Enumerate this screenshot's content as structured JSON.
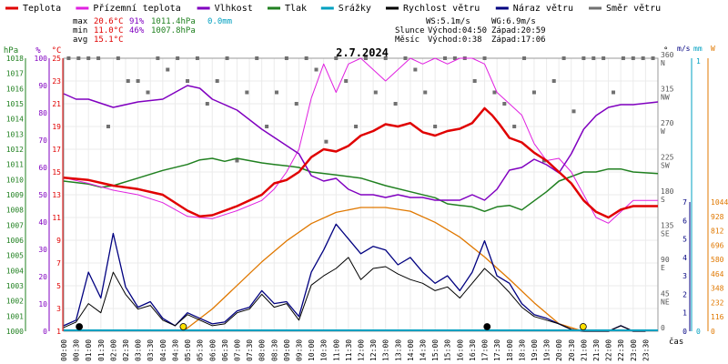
{
  "chart_data": {
    "type": "line",
    "title": "2.7.2024",
    "legend": [
      {
        "label": "Teplota",
        "color": "#e00000"
      },
      {
        "label": "Přízemní teplota",
        "color": "#e020e0"
      },
      {
        "label": "Vlhkost",
        "color": "#8000c0"
      },
      {
        "label": "Tlak",
        "color": "#208020"
      },
      {
        "label": "Srážky",
        "color": "#00a0c0"
      },
      {
        "label": "Rychlost větru",
        "color": "#000000"
      },
      {
        "label": "Náraz větru",
        "color": "#000080"
      },
      {
        "label": "Směr větru",
        "color": "#707070"
      }
    ],
    "stats": {
      "max_label": "max",
      "min_label": "min",
      "avg_label": "avg",
      "max_temp": "20.6°C",
      "max_hum": "91%",
      "max_press": "1011.4hPa",
      "max_rain": "0.0mm",
      "min_temp": "11.0°C",
      "min_hum": "46%",
      "min_press": "1007.8hPa",
      "avg_temp": "15.1°C",
      "ws": "WS:5.1m/s",
      "wg": "WG:6.9m/s",
      "sun_label": "Slunce",
      "moon_label": "Měsíc",
      "sunrise": "Východ:04:50",
      "sunset": "Západ:20:59",
      "moonrise": "Východ:0:38",
      "moonset": "Západ:17:06"
    },
    "axis_units": {
      "pressure": "hPa",
      "percent": "%",
      "celsius": "°C",
      "degrees": "°",
      "speed": "m/s",
      "rain": "mm",
      "radiation": "W",
      "time": "čas"
    },
    "pressure_ticks": [
      "1018",
      "1017",
      "1016",
      "1015",
      "1014",
      "1013",
      "1012",
      "1011",
      "1010",
      "1009",
      "1008",
      "1007",
      "1006",
      "1005",
      "1004",
      "1003",
      "1002",
      "1001",
      "1000"
    ],
    "percent_ticks": [
      "100",
      "90",
      "80",
      "70",
      "60",
      "50",
      "40",
      "30",
      "20",
      "10",
      "0"
    ],
    "temp_ticks": [
      "25",
      "23",
      "21",
      "19",
      "17",
      "15",
      "13",
      "11",
      "9",
      "7",
      "5",
      "3",
      "1"
    ],
    "direction_ticks": [
      {
        "deg": "360",
        "dir": "N"
      },
      {
        "deg": "315",
        "dir": "NW"
      },
      {
        "deg": "270",
        "dir": "W"
      },
      {
        "deg": "225",
        "dir": "SW"
      },
      {
        "deg": "180",
        "dir": "S"
      },
      {
        "deg": "135",
        "dir": "SE"
      },
      {
        "deg": "90",
        "dir": "E"
      },
      {
        "deg": "45",
        "dir": "NE"
      },
      {
        "deg": "0",
        "dir": ""
      }
    ],
    "speed_ticks": [
      "7",
      "6",
      "5",
      "4",
      "3",
      "2",
      "1",
      "0"
    ],
    "rain_ticks": [
      "1",
      "0"
    ],
    "radiation_ticks": [
      "1044",
      "928",
      "812",
      "696",
      "580",
      "464",
      "348",
      "232",
      "116",
      "0"
    ],
    "time_ticks": [
      "00:00",
      "00:30",
      "01:00",
      "01:30",
      "02:00",
      "02:30",
      "03:00",
      "03:30",
      "04:00",
      "04:30",
      "05:00",
      "05:30",
      "06:00",
      "06:30",
      "07:00",
      "07:30",
      "08:00",
      "08:30",
      "09:00",
      "09:30",
      "10:00",
      "10:30",
      "11:00",
      "11:30",
      "12:00",
      "12:30",
      "13:00",
      "13:30",
      "14:00",
      "14:30",
      "15:00",
      "15:30",
      "16:00",
      "16:30",
      "17:00",
      "17:30",
      "18:00",
      "18:30",
      "19:00",
      "19:30",
      "20:00",
      "20:30",
      "21:00",
      "21:30",
      "22:00",
      "22:30",
      "23:00",
      "23:30"
    ],
    "x_range_hours": [
      0,
      24
    ],
    "series": [
      {
        "name": "Teplota",
        "unit": "°C",
        "color": "#e00000",
        "x": [
          0,
          1,
          2,
          3,
          4,
          5,
          5.5,
          6,
          7,
          7.5,
          8,
          8.5,
          9,
          9.5,
          10,
          10.5,
          11,
          11.5,
          12,
          12.5,
          13,
          13.5,
          14,
          14.5,
          15,
          15.5,
          16,
          16.5,
          17,
          17.3,
          17.6,
          18,
          18.5,
          19,
          19.5,
          20,
          20.5,
          21,
          21.5,
          22,
          22.5,
          23,
          24
        ],
        "y": [
          14.5,
          14.3,
          13.8,
          13.5,
          13.0,
          11.6,
          11.1,
          11.2,
          12.0,
          12.5,
          13.0,
          14.0,
          14.3,
          15.0,
          16.3,
          17.0,
          16.8,
          17.3,
          18.2,
          18.6,
          19.2,
          19.0,
          19.3,
          18.5,
          18.2,
          18.6,
          18.8,
          19.3,
          20.6,
          20.0,
          19.2,
          18.0,
          17.6,
          16.7,
          16.0,
          15.0,
          14.0,
          12.5,
          11.5,
          11.0,
          11.7,
          12.0,
          12.0
        ]
      },
      {
        "name": "Přízemní teplota",
        "unit": "°C",
        "color": "#e020e0",
        "x": [
          0,
          1,
          2,
          3,
          4,
          5,
          6,
          7,
          8,
          8.5,
          9,
          9.5,
          10,
          10.5,
          11,
          11.5,
          12,
          12.5,
          13,
          13.5,
          14,
          14.5,
          15,
          15.5,
          16,
          16.5,
          17,
          17.5,
          18,
          18.5,
          19,
          19.5,
          20,
          20.5,
          21,
          21.5,
          22,
          22.5,
          23,
          24
        ],
        "y": [
          14.5,
          14.0,
          13.4,
          13.0,
          12.3,
          11.1,
          10.9,
          11.6,
          12.5,
          13.5,
          15.0,
          17.0,
          21.5,
          24.5,
          22.0,
          24.5,
          25.0,
          24.0,
          23.0,
          24.0,
          25.0,
          24.5,
          25.0,
          24.5,
          25.0,
          25.0,
          24.5,
          22.0,
          21.0,
          20.0,
          17.5,
          16.0,
          16.2,
          15.0,
          13.0,
          11.0,
          10.5,
          11.5,
          12.5,
          12.5
        ]
      },
      {
        "name": "Vlhkost",
        "unit": "%",
        "color": "#8000c0",
        "x": [
          0,
          0.5,
          1,
          2,
          3,
          4,
          5,
          5.5,
          6,
          7,
          8,
          8.5,
          9,
          9.5,
          10,
          10.5,
          11,
          11.5,
          12,
          12.5,
          13,
          13.5,
          14,
          14.5,
          15,
          15.5,
          16,
          16.5,
          17,
          17.5,
          18,
          18.5,
          19,
          19.5,
          20,
          20.5,
          21,
          21.5,
          22,
          22.5,
          23,
          24
        ],
        "y": [
          87,
          85,
          85,
          82,
          84,
          85,
          90,
          89,
          85,
          81,
          74,
          71,
          68,
          65,
          57,
          55,
          56,
          52,
          50,
          50,
          49,
          50,
          49,
          49,
          48,
          48,
          48,
          50,
          48,
          52,
          59,
          60,
          63,
          61,
          58,
          65,
          74,
          79,
          82,
          83,
          83,
          84
        ]
      },
      {
        "name": "Tlak",
        "unit": "hPa",
        "color": "#208020",
        "x": [
          0,
          1,
          1.5,
          2,
          3,
          4,
          5,
          5.5,
          6,
          6.5,
          7,
          8,
          8.5,
          9,
          9.5,
          10,
          11,
          12,
          13,
          14,
          15,
          15.5,
          16,
          16.5,
          17,
          17.5,
          18,
          18.5,
          19,
          19.5,
          20,
          20.5,
          21,
          21.5,
          22,
          22.5,
          23,
          24
        ],
        "y": [
          1009.9,
          1009.7,
          1009.5,
          1009.6,
          1010.1,
          1010.6,
          1011.0,
          1011.3,
          1011.4,
          1011.2,
          1011.4,
          1011.1,
          1011.0,
          1010.9,
          1010.8,
          1010.5,
          1010.3,
          1010.1,
          1009.6,
          1009.2,
          1008.8,
          1008.4,
          1008.3,
          1008.2,
          1007.9,
          1008.2,
          1008.3,
          1008.0,
          1008.6,
          1009.2,
          1009.9,
          1010.2,
          1010.5,
          1010.5,
          1010.7,
          1010.7,
          1010.5,
          1010.4
        ]
      },
      {
        "name": "Rychlost větru",
        "unit": "m/s",
        "color": "#000000",
        "x": [
          0,
          0.5,
          1,
          1.5,
          2,
          2.5,
          3,
          3.5,
          4,
          4.5,
          5,
          5.5,
          6,
          6.5,
          7,
          7.5,
          8,
          8.5,
          9,
          9.5,
          10,
          10.5,
          11,
          11.5,
          12,
          12.5,
          13,
          13.5,
          14,
          14.5,
          15,
          15.5,
          16,
          16.5,
          17,
          17.5,
          18,
          18.5,
          19,
          19.5,
          20,
          20.5,
          21,
          21.5,
          22,
          22.5,
          23,
          23.5
        ],
        "y": [
          0.2,
          0.5,
          1.5,
          1.0,
          3.2,
          2.0,
          1.2,
          1.4,
          0.6,
          0.3,
          0.9,
          0.6,
          0.3,
          0.4,
          1.0,
          1.2,
          2.0,
          1.3,
          1.5,
          0.6,
          2.5,
          3.0,
          3.4,
          4.0,
          2.8,
          3.4,
          3.5,
          3.1,
          2.8,
          2.6,
          2.2,
          2.4,
          1.8,
          2.6,
          3.4,
          2.8,
          2.1,
          1.3,
          0.8,
          0.6,
          0.4,
          0.1,
          0.0,
          0.0,
          0.0,
          0.3,
          0.0,
          0.0
        ]
      },
      {
        "name": "Náraz větru",
        "unit": "m/s",
        "color": "#000080",
        "x": [
          0,
          0.5,
          1,
          1.5,
          2,
          2.5,
          3,
          3.5,
          4,
          4.5,
          5,
          5.5,
          6,
          6.5,
          7,
          7.5,
          8,
          8.5,
          9,
          9.5,
          10,
          10.5,
          11,
          11.5,
          12,
          12.5,
          13,
          13.5,
          14,
          14.5,
          15,
          15.5,
          16,
          16.5,
          17,
          17.5,
          18,
          18.5,
          19,
          19.5,
          20,
          20.5,
          21,
          21.5,
          22,
          22.5,
          23,
          23.5
        ],
        "y": [
          0.3,
          0.6,
          3.2,
          1.8,
          5.3,
          2.4,
          1.3,
          1.6,
          0.7,
          0.3,
          1.0,
          0.7,
          0.4,
          0.5,
          1.1,
          1.3,
          2.2,
          1.5,
          1.6,
          0.8,
          3.2,
          4.4,
          5.8,
          5.0,
          4.2,
          4.6,
          4.4,
          3.6,
          4.0,
          3.2,
          2.6,
          3.0,
          2.2,
          3.2,
          4.9,
          3.0,
          2.6,
          1.5,
          0.9,
          0.7,
          0.4,
          0.1,
          0.0,
          0.0,
          0.0,
          0.3,
          0.0,
          0.0
        ]
      },
      {
        "name": "Slunce",
        "unit": "W",
        "color": "#e07800",
        "x": [
          4.83,
          6,
          7,
          8,
          9,
          10,
          11,
          12,
          13,
          14,
          15,
          16,
          17,
          18,
          19,
          20,
          20.98
        ],
        "y": [
          0,
          180,
          370,
          560,
          730,
          870,
          960,
          1000,
          1000,
          970,
          880,
          760,
          600,
          420,
          230,
          60,
          0
        ]
      },
      {
        "name": "Směr větru",
        "unit": "°",
        "color": "#707070",
        "x": [
          0.2,
          0.6,
          1.0,
          1.4,
          1.8,
          2.2,
          2.6,
          3.0,
          3.4,
          3.8,
          4.2,
          4.6,
          5.0,
          5.4,
          5.8,
          6.2,
          6.6,
          7.0,
          7.4,
          7.8,
          8.2,
          8.6,
          9.0,
          9.4,
          9.8,
          10.2,
          10.6,
          11.0,
          11.4,
          11.8,
          12.2,
          12.6,
          13.0,
          13.4,
          13.8,
          14.2,
          14.6,
          15.0,
          15.4,
          15.8,
          16.2,
          16.6,
          17.0,
          17.4,
          17.8,
          18.2,
          18.6,
          19.0,
          19.4,
          19.8,
          20.2,
          20.6,
          21.0,
          21.4,
          21.8,
          22.2,
          22.6,
          23.0,
          23.4,
          23.8
        ],
        "y": [
          360,
          360,
          360,
          360,
          270,
          360,
          330,
          330,
          315,
          360,
          345,
          360,
          330,
          360,
          300,
          330,
          360,
          225,
          315,
          360,
          270,
          315,
          360,
          300,
          360,
          345,
          250,
          360,
          330,
          270,
          360,
          315,
          360,
          300,
          360,
          345,
          315,
          270,
          360,
          360,
          360,
          330,
          360,
          315,
          300,
          270,
          360,
          315,
          225,
          330,
          360,
          290,
          360,
          360,
          360,
          315,
          360,
          360,
          360,
          360
        ]
      }
    ],
    "markers": [
      {
        "name": "moonrise",
        "x": 0.63,
        "color": "#000000"
      },
      {
        "name": "sunrise",
        "x": 4.83,
        "color": "#ffe000"
      },
      {
        "name": "moonset",
        "x": 17.1,
        "color": "#000000"
      },
      {
        "name": "sunset",
        "x": 20.98,
        "color": "#ffe000"
      }
    ],
    "grid": true
  }
}
